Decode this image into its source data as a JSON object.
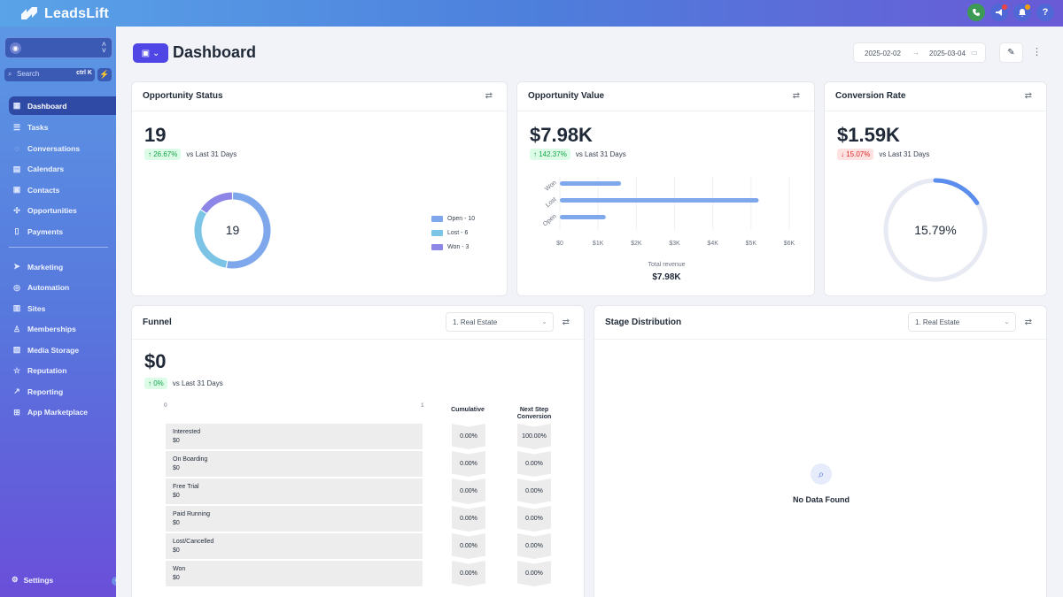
{
  "app": {
    "brand": "LeadsLift"
  },
  "topbar": {
    "icons": [
      "phone-icon",
      "megaphone-icon",
      "bell-icon",
      "help-icon"
    ],
    "help_label": "?"
  },
  "sidebar": {
    "search_placeholder": "Search",
    "search_shortcut": "ctrl K",
    "items": [
      {
        "label": "Dashboard",
        "icon": "dashboard-icon",
        "active": true
      },
      {
        "label": "Tasks",
        "icon": "tasks-icon"
      },
      {
        "label": "Conversations",
        "icon": "chat-icon"
      },
      {
        "label": "Calendars",
        "icon": "calendar-icon"
      },
      {
        "label": "Contacts",
        "icon": "contacts-icon"
      },
      {
        "label": "Opportunities",
        "icon": "opportunities-icon"
      },
      {
        "label": "Payments",
        "icon": "payments-icon"
      }
    ],
    "items2": [
      {
        "label": "Marketing",
        "icon": "send-icon"
      },
      {
        "label": "Automation",
        "icon": "automation-icon"
      },
      {
        "label": "Sites",
        "icon": "sites-icon"
      },
      {
        "label": "Memberships",
        "icon": "memberships-icon"
      },
      {
        "label": "Media Storage",
        "icon": "media-icon"
      },
      {
        "label": "Reputation",
        "icon": "star-icon"
      },
      {
        "label": "Reporting",
        "icon": "reporting-icon"
      },
      {
        "label": "App Marketplace",
        "icon": "marketplace-icon"
      }
    ],
    "settings_label": "Settings"
  },
  "header": {
    "title": "Dashboard",
    "date_start": "2025-02-02",
    "date_end": "2025-03-04"
  },
  "opportunity_status": {
    "title": "Opportunity Status",
    "value": "19",
    "change": "26.67%",
    "change_dir": "up",
    "compare_label": "vs Last 31 Days",
    "center_label": "19",
    "legend": [
      {
        "label": "Open - 10",
        "value": 10,
        "color": "#7fa8ec"
      },
      {
        "label": "Lost - 6",
        "value": 6,
        "color": "#7cc4e6"
      },
      {
        "label": "Won - 3",
        "value": 3,
        "color": "#8e86e6"
      }
    ]
  },
  "opportunity_value": {
    "title": "Opportunity Value",
    "value": "$7.98K",
    "change": "142.37%",
    "change_dir": "up",
    "compare_label": "vs Last 31 Days",
    "footer_label": "Total revenue",
    "footer_value": "$7.98K"
  },
  "conversion_rate": {
    "title": "Conversion Rate",
    "value": "$1.59K",
    "change": "15.07%",
    "change_dir": "down",
    "compare_label": "vs Last 31 Days",
    "gauge_label": "15.79%",
    "gauge_fraction": 0.1579
  },
  "funnel": {
    "title": "Funnel",
    "pipeline": "1. Real Estate",
    "value": "$0",
    "change": "0%",
    "compare_label": "vs Last 31 Days",
    "axis_min": "0",
    "axis_max": "1",
    "col_cumulative": "Cumulative",
    "col_next": "Next Step Conversion",
    "stages": [
      {
        "name": "Interested",
        "value": "$0",
        "cumulative": "0.00%",
        "next": "100.00%"
      },
      {
        "name": "On Boarding",
        "value": "$0",
        "cumulative": "0.00%",
        "next": "0.00%"
      },
      {
        "name": "Free Trial",
        "value": "$0",
        "cumulative": "0.00%",
        "next": "0.00%"
      },
      {
        "name": "Paid Running",
        "value": "$0",
        "cumulative": "0.00%",
        "next": "0.00%"
      },
      {
        "name": "Lost/Cancelled",
        "value": "$0",
        "cumulative": "0.00%",
        "next": "0.00%"
      },
      {
        "name": "Won",
        "value": "$0",
        "cumulative": "0.00%",
        "next": "0.00%"
      }
    ]
  },
  "stage_distribution": {
    "title": "Stage Distribution",
    "pipeline": "1. Real Estate",
    "empty_label": "No Data Found"
  },
  "chart_data": {
    "type": "bar",
    "orientation": "horizontal",
    "categories": [
      "Won",
      "Lost",
      "Open"
    ],
    "values": [
      1600,
      5200,
      1200
    ],
    "xticks": [
      "$0",
      "$1K",
      "$2K",
      "$3K",
      "$4K",
      "$5K",
      "$6K"
    ],
    "xlim": [
      0,
      6000
    ],
    "xlabel": "Total revenue",
    "color": "#7fa8ec",
    "grid": true
  }
}
